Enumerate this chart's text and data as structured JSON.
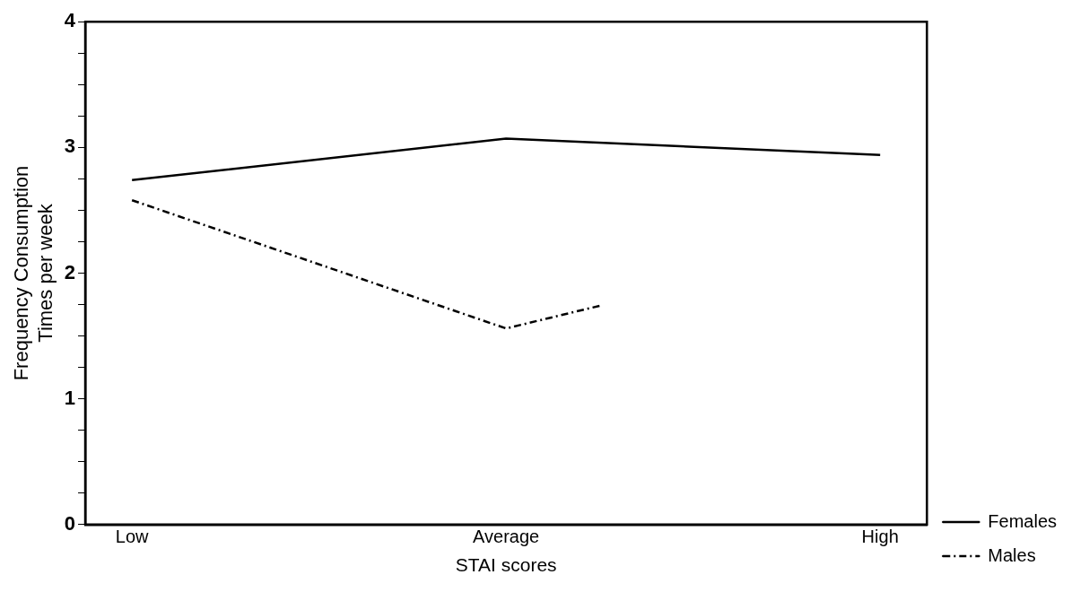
{
  "chart_data": {
    "type": "line",
    "xlabel": "STAI scores",
    "ylabel": "Frequency Consumption\nTimes per week",
    "categories": [
      "Low",
      null,
      null,
      null,
      "Average",
      null,
      null,
      null,
      "High"
    ],
    "ylim": [
      0,
      4
    ],
    "yticks": [
      0,
      {
        "value": 0.25,
        "label": null
      },
      {
        "value": 0.5,
        "label": null
      },
      {
        "value": 0.75,
        "label": null
      },
      1,
      {
        "value": 1.25,
        "label": null
      },
      {
        "value": 1.5,
        "label": null
      },
      {
        "value": 1.75,
        "label": null
      },
      2,
      {
        "value": 2.25,
        "label": null
      },
      {
        "value": 2.5,
        "label": null
      },
      {
        "value": 2.75,
        "label": null
      },
      3,
      {
        "value": 3.25,
        "label": null
      },
      {
        "value": 3.5,
        "label": null
      },
      {
        "value": 3.75,
        "label": null
      },
      4
    ],
    "series": [
      {
        "name": "Females",
        "color": "#000000",
        "values": [
          2.74,
          null,
          null,
          null,
          3.07,
          null,
          null,
          null,
          2.94
        ],
        "line_style": "solid"
      },
      {
        "name": "Males",
        "color": "#000000",
        "values": [
          2.58,
          null,
          null,
          null,
          1.56,
          1.74,
          null,
          null,
          null
        ],
        "line_style": "dashed"
      }
    ],
    "grid": false,
    "legend": "bottom right",
    "marker": "none"
  }
}
